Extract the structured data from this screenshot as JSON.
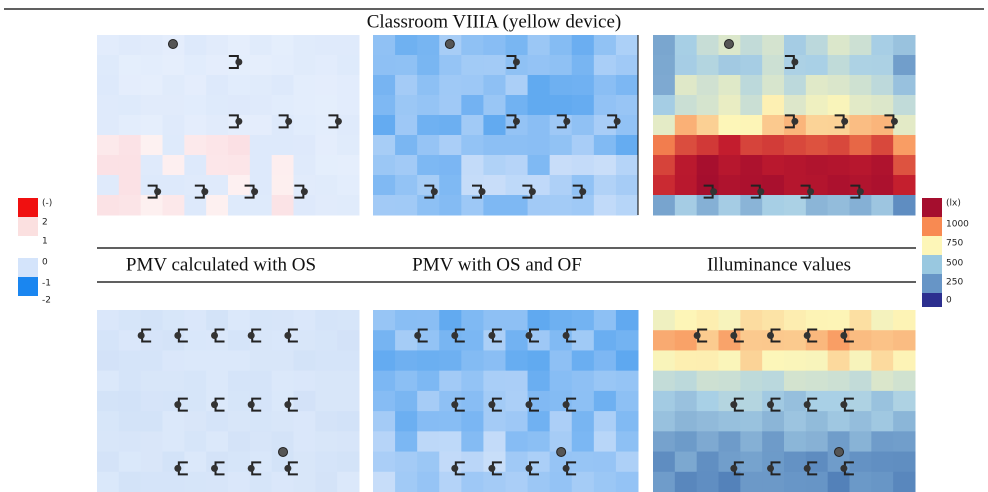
{
  "title": "Classroom VIIIA (yellow device)",
  "captions": [
    "PMV calculated with OS",
    "PMV with OS and OF",
    "Illuminance values"
  ],
  "legends": {
    "pmv": {
      "unit": "(-)",
      "labels": [
        "2",
        "1",
        "0",
        "-1",
        "-2"
      ]
    },
    "illuminance": {
      "unit": "(lx)",
      "labels": [
        "1000",
        "750",
        "500",
        "250",
        "0"
      ]
    }
  }
}
